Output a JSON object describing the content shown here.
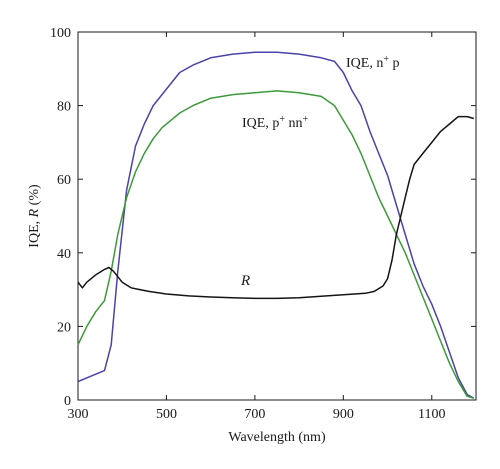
{
  "chart_data": {
    "type": "line",
    "xlabel": "Wavelength (nm)",
    "ylabel_parts": [
      "IQE, ",
      "R",
      " (%)"
    ],
    "xlim": [
      300,
      1200
    ],
    "ylim": [
      0,
      100
    ],
    "xticks": [
      300,
      500,
      700,
      900,
      1100
    ],
    "yticks": [
      0,
      20,
      40,
      60,
      80,
      100
    ],
    "grid": false,
    "series": [
      {
        "key": "npp",
        "color": "#4a43a8",
        "label_parts": [
          "IQE, n",
          "+",
          " p"
        ],
        "points": [
          [
            300,
            5
          ],
          [
            340,
            7
          ],
          [
            360,
            8
          ],
          [
            375,
            15
          ],
          [
            390,
            35
          ],
          [
            410,
            57
          ],
          [
            430,
            69
          ],
          [
            450,
            75
          ],
          [
            470,
            80
          ],
          [
            490,
            83
          ],
          [
            510,
            86
          ],
          [
            530,
            89
          ],
          [
            560,
            91
          ],
          [
            600,
            93
          ],
          [
            650,
            94
          ],
          [
            700,
            94.5
          ],
          [
            750,
            94.5
          ],
          [
            800,
            94
          ],
          [
            850,
            93
          ],
          [
            880,
            92
          ],
          [
            900,
            89
          ],
          [
            920,
            84
          ],
          [
            940,
            80
          ],
          [
            960,
            73
          ],
          [
            980,
            67
          ],
          [
            1000,
            61
          ],
          [
            1020,
            53
          ],
          [
            1040,
            45
          ],
          [
            1060,
            37
          ],
          [
            1080,
            31
          ],
          [
            1100,
            26
          ],
          [
            1120,
            20
          ],
          [
            1140,
            13
          ],
          [
            1160,
            6
          ],
          [
            1180,
            1.5
          ],
          [
            1195,
            0.5
          ]
        ]
      },
      {
        "key": "pnn",
        "color": "#3d9a3a",
        "label_parts": [
          "IQE, p",
          "+",
          " nn",
          "+"
        ],
        "points": [
          [
            300,
            15
          ],
          [
            320,
            20
          ],
          [
            340,
            24
          ],
          [
            360,
            27
          ],
          [
            375,
            35
          ],
          [
            390,
            45
          ],
          [
            410,
            55
          ],
          [
            430,
            62
          ],
          [
            450,
            67
          ],
          [
            470,
            71
          ],
          [
            490,
            74
          ],
          [
            510,
            76
          ],
          [
            530,
            78
          ],
          [
            560,
            80
          ],
          [
            600,
            82
          ],
          [
            650,
            83
          ],
          [
            700,
            83.5
          ],
          [
            750,
            84
          ],
          [
            800,
            83.5
          ],
          [
            850,
            82.5
          ],
          [
            880,
            80
          ],
          [
            900,
            76
          ],
          [
            920,
            72
          ],
          [
            940,
            67
          ],
          [
            960,
            61
          ],
          [
            980,
            55
          ],
          [
            1000,
            50
          ],
          [
            1020,
            45
          ],
          [
            1040,
            40
          ],
          [
            1060,
            34
          ],
          [
            1080,
            28
          ],
          [
            1100,
            22
          ],
          [
            1120,
            16
          ],
          [
            1140,
            10
          ],
          [
            1160,
            5
          ],
          [
            1180,
            1
          ],
          [
            1195,
            0.5
          ]
        ]
      },
      {
        "key": "R",
        "color": "#141414",
        "label_parts": [
          "R"
        ],
        "points": [
          [
            300,
            32
          ],
          [
            310,
            30.5
          ],
          [
            320,
            32
          ],
          [
            340,
            34
          ],
          [
            360,
            35.5
          ],
          [
            370,
            36
          ],
          [
            380,
            35
          ],
          [
            400,
            32
          ],
          [
            420,
            30.5
          ],
          [
            440,
            30
          ],
          [
            460,
            29.5
          ],
          [
            500,
            28.8
          ],
          [
            550,
            28.3
          ],
          [
            600,
            28
          ],
          [
            650,
            27.8
          ],
          [
            700,
            27.6
          ],
          [
            750,
            27.6
          ],
          [
            800,
            27.8
          ],
          [
            850,
            28.2
          ],
          [
            900,
            28.6
          ],
          [
            950,
            29
          ],
          [
            970,
            29.5
          ],
          [
            990,
            31
          ],
          [
            1000,
            33
          ],
          [
            1010,
            38
          ],
          [
            1020,
            45
          ],
          [
            1030,
            50
          ],
          [
            1040,
            55
          ],
          [
            1050,
            60
          ],
          [
            1060,
            64
          ],
          [
            1080,
            67
          ],
          [
            1100,
            70
          ],
          [
            1120,
            73
          ],
          [
            1140,
            75
          ],
          [
            1160,
            77
          ],
          [
            1180,
            77
          ],
          [
            1195,
            76.5
          ]
        ]
      }
    ]
  }
}
